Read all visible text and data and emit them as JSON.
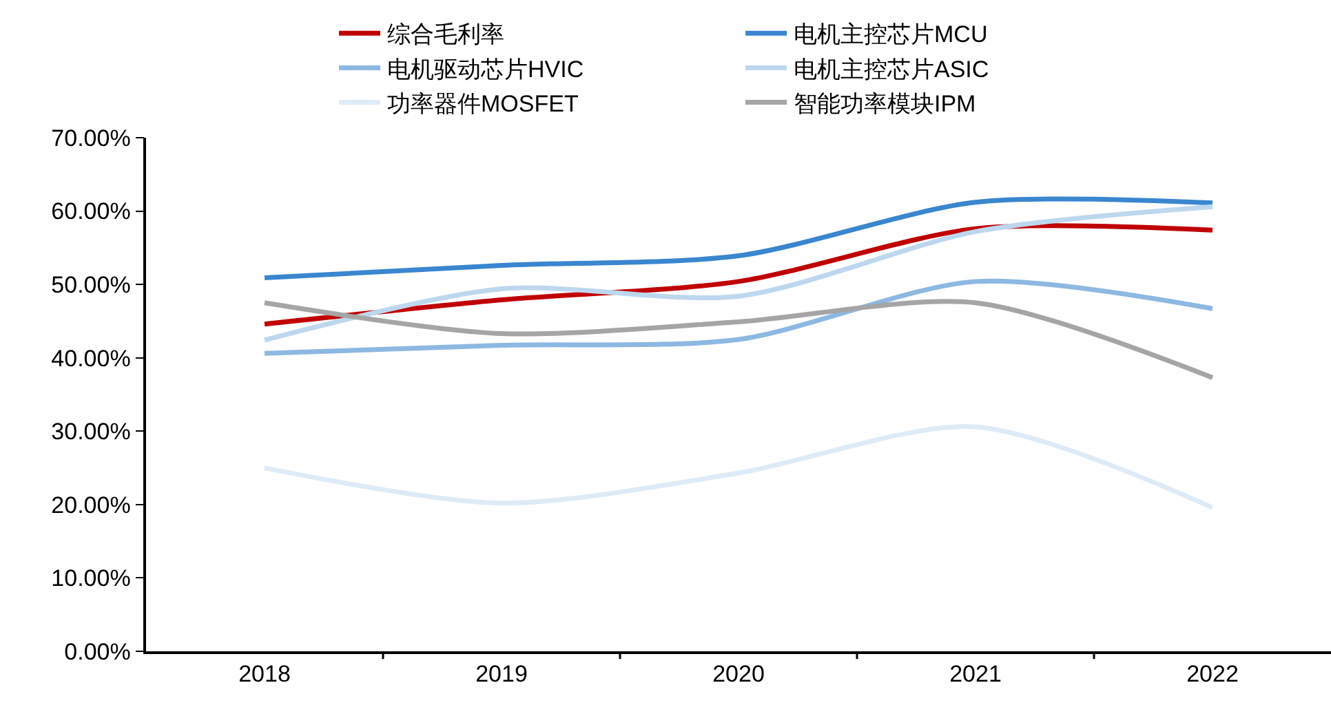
{
  "chart_data": {
    "type": "line",
    "categories": [
      "2018",
      "2019",
      "2020",
      "2021",
      "2022"
    ],
    "series": [
      {
        "name": "综合毛利率",
        "color": "#c00000",
        "values": [
          44.6,
          47.9,
          50.4,
          57.6,
          57.4
        ]
      },
      {
        "name": "电机主控芯片MCU",
        "color": "#3a86cf",
        "values": [
          50.9,
          52.6,
          53.9,
          61.2,
          61.1
        ]
      },
      {
        "name": "电机驱动芯片HVIC",
        "color": "#8db8e2",
        "values": [
          40.6,
          41.7,
          42.5,
          50.4,
          46.7
        ]
      },
      {
        "name": "电机主控芯片ASIC",
        "color": "#bdd7ee",
        "values": [
          42.4,
          49.4,
          48.4,
          57.2,
          60.6
        ]
      },
      {
        "name": "功率器件MOSFET",
        "color": "#deebf7",
        "values": [
          25.0,
          20.2,
          24.3,
          30.6,
          19.6
        ]
      },
      {
        "name": "智能功率模块IPM",
        "color": "#a5a5a5",
        "values": [
          47.5,
          43.3,
          44.9,
          47.5,
          37.3
        ]
      }
    ],
    "ylim": [
      0,
      70
    ],
    "yticks": [
      {
        "value": 0,
        "label": "0.00%"
      },
      {
        "value": 10,
        "label": "10.00%"
      },
      {
        "value": 20,
        "label": "20.00%"
      },
      {
        "value": 30,
        "label": "30.00%"
      },
      {
        "value": 40,
        "label": "40.00%"
      },
      {
        "value": 50,
        "label": "50.00%"
      },
      {
        "value": 60,
        "label": "60.00%"
      },
      {
        "value": 70,
        "label": "70.00%"
      }
    ],
    "grid": false,
    "legend": "top",
    "marker": "none",
    "line_style": "solid"
  }
}
